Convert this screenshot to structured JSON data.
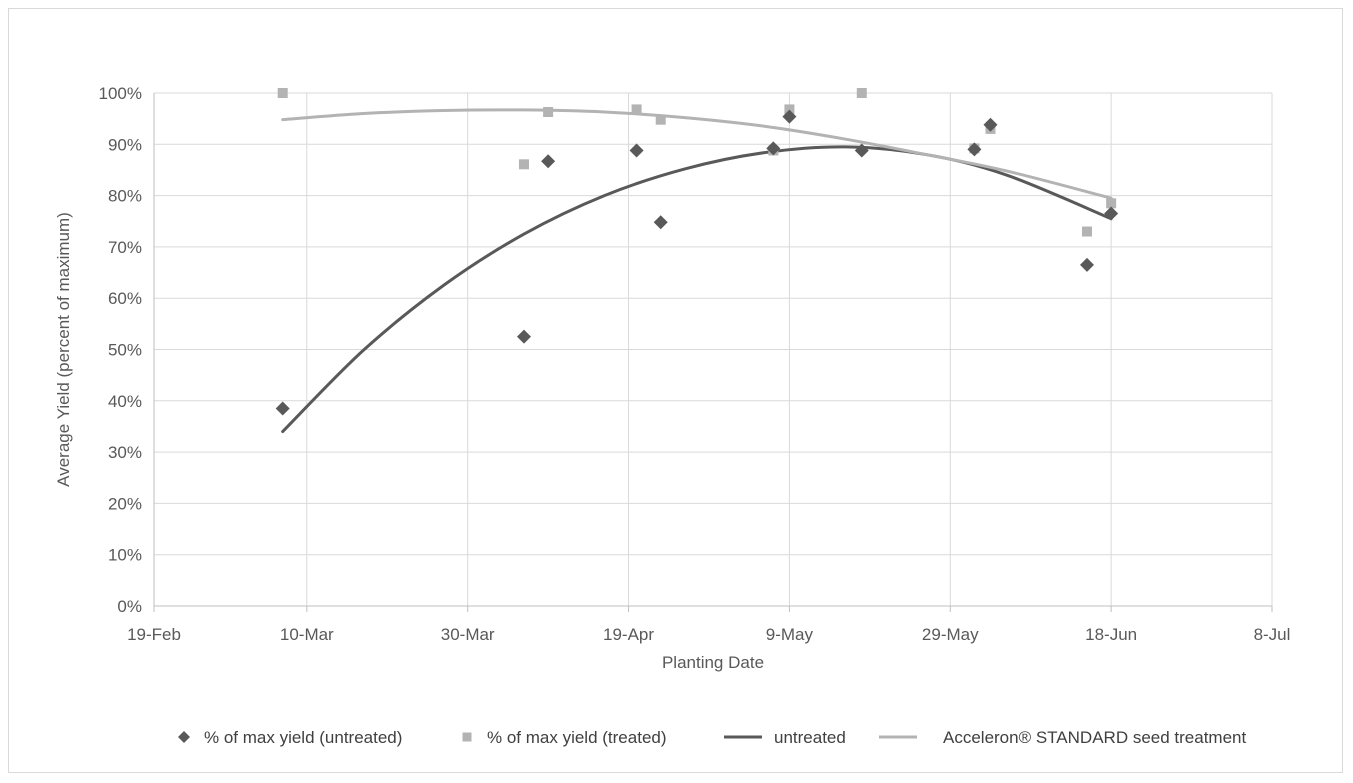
{
  "chart_data": {
    "type": "scatter",
    "title": "",
    "xlabel": "Planting Date",
    "ylabel": "Average Yield (percent of maximum)",
    "x_unit": "date (2019)",
    "xlim": [
      "2019-02-19",
      "2019-07-08"
    ],
    "x_ticks": [
      {
        "date": "2019-02-19",
        "label": "19-Feb"
      },
      {
        "date": "2019-03-10",
        "label": "10-Mar"
      },
      {
        "date": "2019-03-30",
        "label": "30-Mar"
      },
      {
        "date": "2019-04-19",
        "label": "19-Apr"
      },
      {
        "date": "2019-05-09",
        "label": "9-May"
      },
      {
        "date": "2019-05-29",
        "label": "29-May"
      },
      {
        "date": "2019-06-18",
        "label": "18-Jun"
      },
      {
        "date": "2019-07-08",
        "label": "8-Jul"
      }
    ],
    "ylim": [
      0,
      100
    ],
    "y_ticks": [
      0,
      10,
      20,
      30,
      40,
      50,
      60,
      70,
      80,
      90,
      100
    ],
    "y_tick_labels": [
      "0%",
      "10%",
      "20%",
      "30%",
      "40%",
      "50%",
      "60%",
      "70%",
      "80%",
      "90%",
      "100%"
    ],
    "grid": true,
    "legend_position": "bottom",
    "series": [
      {
        "name": "% of max yield (untreated)",
        "kind": "scatter",
        "marker": "diamond",
        "color": "#595959",
        "points": [
          {
            "x": "2019-03-07",
            "y": 38.5
          },
          {
            "x": "2019-04-06",
            "y": 52.5
          },
          {
            "x": "2019-04-09",
            "y": 86.7
          },
          {
            "x": "2019-04-20",
            "y": 88.8
          },
          {
            "x": "2019-04-23",
            "y": 74.8
          },
          {
            "x": "2019-05-07",
            "y": 89.2
          },
          {
            "x": "2019-05-09",
            "y": 95.4
          },
          {
            "x": "2019-05-18",
            "y": 88.8
          },
          {
            "x": "2019-06-01",
            "y": 89.0
          },
          {
            "x": "2019-06-03",
            "y": 93.8
          },
          {
            "x": "2019-06-15",
            "y": 66.5
          },
          {
            "x": "2019-06-18",
            "y": 76.5
          }
        ]
      },
      {
        "name": "% of max yield (treated)",
        "kind": "scatter",
        "marker": "square",
        "color": "#b3b3b3",
        "points": [
          {
            "x": "2019-03-07",
            "y": 100
          },
          {
            "x": "2019-04-06",
            "y": 86.1
          },
          {
            "x": "2019-04-09",
            "y": 96.3
          },
          {
            "x": "2019-04-20",
            "y": 96.8
          },
          {
            "x": "2019-04-23",
            "y": 94.8
          },
          {
            "x": "2019-05-07",
            "y": 88.8
          },
          {
            "x": "2019-05-09",
            "y": 96.8
          },
          {
            "x": "2019-05-18",
            "y": 100
          },
          {
            "x": "2019-06-01",
            "y": 89.2
          },
          {
            "x": "2019-06-03",
            "y": 93.0
          },
          {
            "x": "2019-06-15",
            "y": 73.0
          },
          {
            "x": "2019-06-18",
            "y": 78.5
          }
        ]
      },
      {
        "name": "untreated",
        "kind": "line",
        "color": "#595959",
        "points": [
          {
            "x": "2019-03-07",
            "y": 34.0
          },
          {
            "x": "2019-03-17",
            "y": 49.8
          },
          {
            "x": "2019-03-27",
            "y": 62.5
          },
          {
            "x": "2019-04-06",
            "y": 72.5
          },
          {
            "x": "2019-04-16",
            "y": 80.0
          },
          {
            "x": "2019-04-26",
            "y": 85.2
          },
          {
            "x": "2019-05-06",
            "y": 88.4
          },
          {
            "x": "2019-05-16",
            "y": 89.5
          },
          {
            "x": "2019-05-26",
            "y": 88.0
          },
          {
            "x": "2019-06-05",
            "y": 84.0
          },
          {
            "x": "2019-06-18",
            "y": 75.5
          }
        ]
      },
      {
        "name": "Acceleron® STANDARD seed treatment",
        "kind": "line",
        "color": "#b3b3b3",
        "points": [
          {
            "x": "2019-03-07",
            "y": 94.8
          },
          {
            "x": "2019-03-17",
            "y": 96.0
          },
          {
            "x": "2019-03-27",
            "y": 96.6
          },
          {
            "x": "2019-04-06",
            "y": 96.7
          },
          {
            "x": "2019-04-16",
            "y": 96.3
          },
          {
            "x": "2019-04-26",
            "y": 95.2
          },
          {
            "x": "2019-05-06",
            "y": 93.5
          },
          {
            "x": "2019-05-16",
            "y": 91.0
          },
          {
            "x": "2019-05-26",
            "y": 88.0
          },
          {
            "x": "2019-06-05",
            "y": 84.8
          },
          {
            "x": "2019-06-18",
            "y": 79.5
          }
        ]
      }
    ]
  }
}
